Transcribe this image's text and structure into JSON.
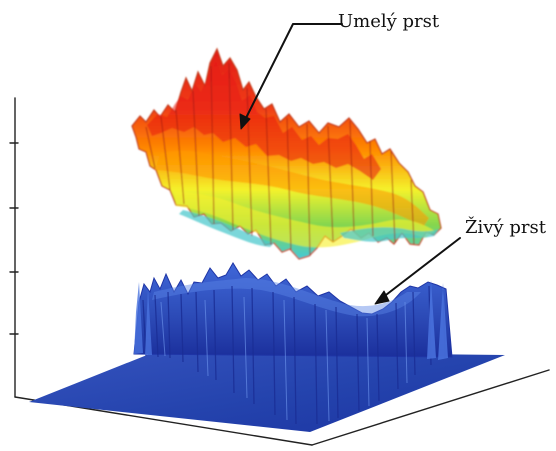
{
  "labels": {
    "artificial_finger": "Umelý prst",
    "live_finger": "Živý prst"
  },
  "colors": {
    "background": "#ffffff",
    "axis": "#222222",
    "annotation_line": "#111111",
    "base_blue": "#2d4cb8",
    "deep_blue": "#1e33a6",
    "mid_blue": "#3f67d8",
    "light_blue": "#74a6f1",
    "artificial_red": "#e11b12",
    "artificial_orange": "#ff8a00",
    "artificial_yellow": "#f4f22b",
    "artificial_green": "#83d64f",
    "artificial_cyan": "#42c9d9"
  }
}
